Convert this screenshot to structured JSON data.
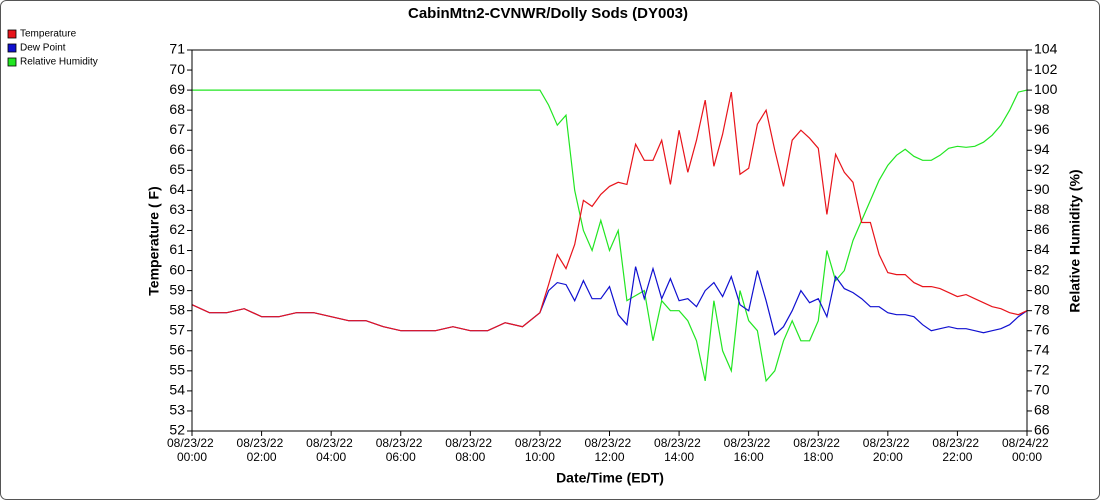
{
  "chart_data": {
    "type": "line",
    "title": "CabinMtn2-CVNWR/Dolly Sods (DY003)",
    "x_label": "Date/Time (EDT)",
    "y_label": "Temperature ( F)",
    "y2_label": "Relative Humidity (%)",
    "legend": "top-left",
    "grid": false,
    "xlim": [
      0,
      24
    ],
    "xticks": [
      {
        "value": 0,
        "label": "08/23/22 00:00"
      },
      {
        "value": 2,
        "label": "08/23/22 02:00"
      },
      {
        "value": 4,
        "label": "08/23/22 04:00"
      },
      {
        "value": 6,
        "label": "08/23/22 06:00"
      },
      {
        "value": 8,
        "label": "08/23/22 08:00"
      },
      {
        "value": 10,
        "label": "08/23/22 10:00"
      },
      {
        "value": 12,
        "label": "08/23/22 12:00"
      },
      {
        "value": 14,
        "label": "08/23/22 14:00"
      },
      {
        "value": 16,
        "label": "08/23/22 16:00"
      },
      {
        "value": 18,
        "label": "08/23/22 18:00"
      },
      {
        "value": 20,
        "label": "08/23/22 20:00"
      },
      {
        "value": 22,
        "label": "08/23/22 22:00"
      },
      {
        "value": 24,
        "label": "08/24/22 00:00"
      }
    ],
    "ylim": [
      52,
      71
    ],
    "yticks": [
      52,
      53,
      54,
      55,
      56,
      57,
      58,
      59,
      60,
      61,
      62,
      63,
      64,
      65,
      66,
      67,
      68,
      69,
      70,
      71
    ],
    "y2lim": [
      66,
      104
    ],
    "y2ticks": [
      66,
      68,
      70,
      72,
      74,
      76,
      78,
      80,
      82,
      84,
      86,
      88,
      90,
      92,
      94,
      96,
      98,
      100,
      102,
      104
    ],
    "x": [
      0,
      0.5,
      1,
      1.5,
      2,
      2.5,
      3,
      3.5,
      4,
      4.5,
      5,
      5.5,
      6,
      6.5,
      7,
      7.5,
      8,
      8.5,
      9,
      9.5,
      10,
      10.25,
      10.5,
      10.75,
      11,
      11.25,
      11.5,
      11.75,
      12,
      12.25,
      12.5,
      12.75,
      13,
      13.25,
      13.5,
      13.75,
      14,
      14.25,
      14.5,
      14.75,
      15,
      15.25,
      15.5,
      15.75,
      16,
      16.25,
      16.5,
      16.75,
      17,
      17.25,
      17.5,
      17.75,
      18,
      18.25,
      18.5,
      18.75,
      19,
      19.25,
      19.5,
      19.75,
      20,
      20.25,
      20.5,
      20.75,
      21,
      21.25,
      21.5,
      21.75,
      22,
      22.25,
      22.5,
      22.75,
      23,
      23.25,
      23.5,
      23.75,
      24
    ],
    "series": [
      {
        "name": "Temperature",
        "color": "#e8141b",
        "axis": "y",
        "values": [
          58.3,
          57.9,
          57.9,
          58.1,
          57.7,
          57.7,
          57.9,
          57.9,
          57.7,
          57.5,
          57.5,
          57.2,
          57.0,
          57.0,
          57.0,
          57.2,
          57.0,
          57.0,
          57.4,
          57.2,
          57.9,
          59.3,
          60.8,
          60.1,
          61.3,
          63.5,
          63.2,
          63.8,
          64.2,
          64.4,
          64.3,
          66.3,
          65.5,
          65.5,
          66.5,
          64.3,
          67.0,
          64.9,
          66.5,
          68.5,
          65.2,
          66.8,
          68.9,
          64.8,
          65.1,
          67.3,
          68.0,
          66.0,
          64.2,
          66.5,
          67.0,
          66.6,
          66.1,
          62.8,
          65.8,
          64.9,
          64.4,
          62.4,
          62.4,
          60.8,
          59.9,
          59.8,
          59.8,
          59.4,
          59.2,
          59.2,
          59.1,
          58.9,
          58.7,
          58.8,
          58.6,
          58.4,
          58.2,
          58.1,
          57.9,
          57.8,
          58.0
        ]
      },
      {
        "name": "Dew Point",
        "color": "#1010d0",
        "axis": "y",
        "values": [
          58.3,
          57.9,
          57.9,
          58.1,
          57.7,
          57.7,
          57.9,
          57.9,
          57.7,
          57.5,
          57.5,
          57.2,
          57.0,
          57.0,
          57.0,
          57.2,
          57.0,
          57.0,
          57.4,
          57.2,
          57.9,
          59.0,
          59.4,
          59.3,
          58.5,
          59.5,
          58.6,
          58.6,
          59.2,
          57.8,
          57.3,
          60.2,
          58.6,
          60.1,
          58.6,
          59.6,
          58.5,
          58.6,
          58.2,
          59.0,
          59.4,
          58.7,
          59.7,
          58.3,
          58.0,
          60.0,
          58.5,
          56.8,
          57.2,
          58.0,
          59.0,
          58.4,
          58.6,
          57.7,
          59.7,
          59.1,
          58.9,
          58.6,
          58.2,
          58.2,
          57.9,
          57.8,
          57.8,
          57.7,
          57.3,
          57.0,
          57.1,
          57.2,
          57.1,
          57.1,
          57.0,
          56.9,
          57.0,
          57.1,
          57.3,
          57.7,
          58.0
        ]
      },
      {
        "name": "Relative Humidity",
        "color": "#22e622",
        "axis": "y2",
        "values": [
          100,
          100,
          100,
          100,
          100,
          100,
          100,
          100,
          100,
          100,
          100,
          100,
          100,
          100,
          100,
          100,
          100,
          100,
          100,
          100,
          100,
          98.5,
          96.5,
          97.5,
          90,
          86,
          84,
          87,
          84,
          86,
          79,
          79.5,
          80,
          75,
          79,
          78,
          78,
          77,
          75,
          71,
          79,
          74,
          72,
          80,
          77,
          76,
          71,
          72,
          75,
          77,
          75,
          75,
          77,
          84,
          81,
          82,
          85,
          87,
          89,
          91,
          92.5,
          93.5,
          94.1,
          93.4,
          93,
          93,
          93.5,
          94.2,
          94.4,
          94.3,
          94.4,
          94.8,
          95.5,
          96.5,
          98.0,
          99.8,
          100.0
        ]
      }
    ]
  }
}
